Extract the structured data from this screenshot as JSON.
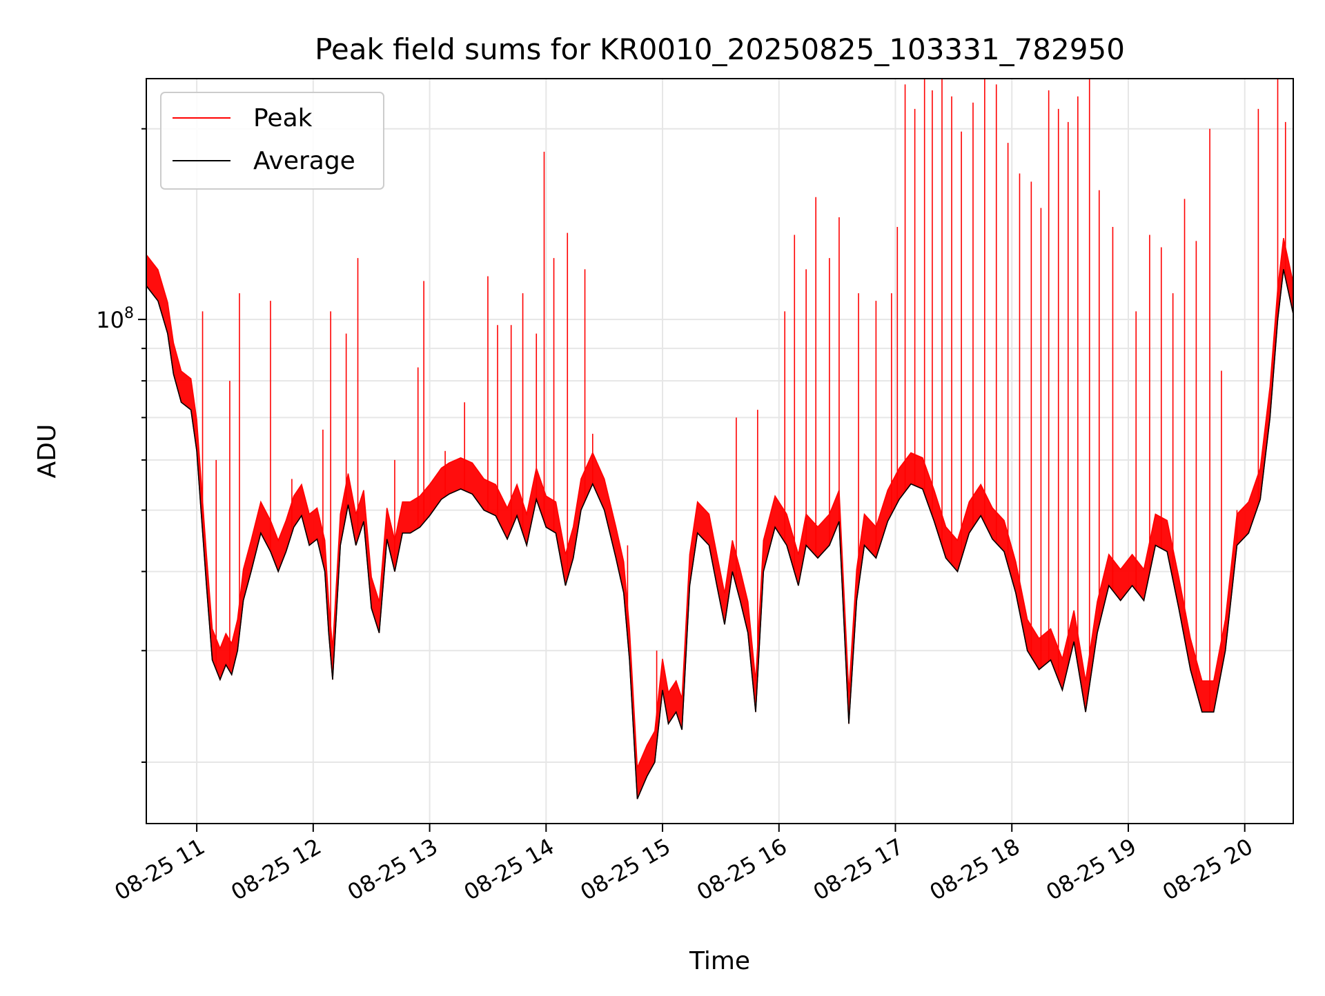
{
  "chart_data": {
    "type": "line",
    "title": "Peak field sums for KR0010_20250825_103331_782950",
    "xlabel": "Time",
    "ylabel": "ADU",
    "y_scale": "log",
    "ylim": [
      16000000,
      240000000
    ],
    "xlim": [
      "2025-08-25 10:34",
      "2025-08-25 20:25"
    ],
    "grid": true,
    "legend_position": "top-left",
    "x_ticks": [
      {
        "t": "2025-08-25 11:00",
        "label": "08-25 11"
      },
      {
        "t": "2025-08-25 12:00",
        "label": "08-25 12"
      },
      {
        "t": "2025-08-25 13:00",
        "label": "08-25 13"
      },
      {
        "t": "2025-08-25 14:00",
        "label": "08-25 14"
      },
      {
        "t": "2025-08-25 15:00",
        "label": "08-25 15"
      },
      {
        "t": "2025-08-25 16:00",
        "label": "08-25 16"
      },
      {
        "t": "2025-08-25 17:00",
        "label": "08-25 17"
      },
      {
        "t": "2025-08-25 18:00",
        "label": "08-25 18"
      },
      {
        "t": "2025-08-25 19:00",
        "label": "08-25 19"
      },
      {
        "t": "2025-08-25 20:00",
        "label": "08-25 20"
      }
    ],
    "y_major_tick": {
      "value": 100000000,
      "label_base": "10",
      "label_exp": "8"
    },
    "series": [
      {
        "name": "Peak",
        "color": "#ff0000",
        "spikes": [
          [
            "2025-08-25 11:03",
            103000000
          ],
          [
            "2025-08-25 11:10",
            60000000
          ],
          [
            "2025-08-25 11:17",
            80000000
          ],
          [
            "2025-08-25 11:22",
            110000000
          ],
          [
            "2025-08-25 11:38",
            107000000
          ],
          [
            "2025-08-25 11:49",
            56000000
          ],
          [
            "2025-08-25 12:05",
            67000000
          ],
          [
            "2025-08-25 12:09",
            103000000
          ],
          [
            "2025-08-25 12:17",
            95000000
          ],
          [
            "2025-08-25 12:23",
            125000000
          ],
          [
            "2025-08-25 12:42",
            60000000
          ],
          [
            "2025-08-25 12:54",
            84000000
          ],
          [
            "2025-08-25 12:57",
            115000000
          ],
          [
            "2025-08-25 13:08",
            62000000
          ],
          [
            "2025-08-25 13:18",
            74000000
          ],
          [
            "2025-08-25 13:30",
            117000000
          ],
          [
            "2025-08-25 13:35",
            98000000
          ],
          [
            "2025-08-25 13:42",
            98000000
          ],
          [
            "2025-08-25 13:48",
            110000000
          ],
          [
            "2025-08-25 13:55",
            95000000
          ],
          [
            "2025-08-25 13:59",
            184000000
          ],
          [
            "2025-08-25 14:04",
            125000000
          ],
          [
            "2025-08-25 14:11",
            137000000
          ],
          [
            "2025-08-25 14:20",
            120000000
          ],
          [
            "2025-08-25 14:24",
            66000000
          ],
          [
            "2025-08-25 14:42",
            44000000
          ],
          [
            "2025-08-25 14:57",
            30000000
          ],
          [
            "2025-08-25 15:25",
            43000000
          ],
          [
            "2025-08-25 15:38",
            70000000
          ],
          [
            "2025-08-25 15:49",
            72000000
          ],
          [
            "2025-08-25 16:03",
            103000000
          ],
          [
            "2025-08-25 16:08",
            136000000
          ],
          [
            "2025-08-25 16:14",
            120000000
          ],
          [
            "2025-08-25 16:19",
            156000000
          ],
          [
            "2025-08-25 16:26",
            125000000
          ],
          [
            "2025-08-25 16:31",
            145000000
          ],
          [
            "2025-08-25 16:41",
            110000000
          ],
          [
            "2025-08-25 16:50",
            107000000
          ],
          [
            "2025-08-25 16:58",
            110000000
          ],
          [
            "2025-08-25 17:01",
            140000000
          ],
          [
            "2025-08-25 17:05",
            235000000
          ],
          [
            "2025-08-25 17:10",
            215000000
          ],
          [
            "2025-08-25 17:15",
            240000000
          ],
          [
            "2025-08-25 17:19",
            230000000
          ],
          [
            "2025-08-25 17:24",
            240000000
          ],
          [
            "2025-08-25 17:29",
            225000000
          ],
          [
            "2025-08-25 17:34",
            198000000
          ],
          [
            "2025-08-25 17:40",
            220000000
          ],
          [
            "2025-08-25 17:46",
            240000000
          ],
          [
            "2025-08-25 17:52",
            235000000
          ],
          [
            "2025-08-25 17:58",
            190000000
          ],
          [
            "2025-08-25 18:04",
            170000000
          ],
          [
            "2025-08-25 18:10",
            165000000
          ],
          [
            "2025-08-25 18:15",
            150000000
          ],
          [
            "2025-08-25 18:19",
            230000000
          ],
          [
            "2025-08-25 18:24",
            215000000
          ],
          [
            "2025-08-25 18:29",
            205000000
          ],
          [
            "2025-08-25 18:34",
            225000000
          ],
          [
            "2025-08-25 18:40",
            240000000
          ],
          [
            "2025-08-25 18:45",
            160000000
          ],
          [
            "2025-08-25 18:52",
            140000000
          ],
          [
            "2025-08-25 19:04",
            103000000
          ],
          [
            "2025-08-25 19:11",
            136000000
          ],
          [
            "2025-08-25 19:17",
            130000000
          ],
          [
            "2025-08-25 19:23",
            110000000
          ],
          [
            "2025-08-25 19:29",
            155000000
          ],
          [
            "2025-08-25 19:35",
            133000000
          ],
          [
            "2025-08-25 19:42",
            200000000
          ],
          [
            "2025-08-25 19:48",
            83000000
          ],
          [
            "2025-08-25 19:56",
            50000000
          ],
          [
            "2025-08-25 20:07",
            215000000
          ],
          [
            "2025-08-25 20:17",
            240000000
          ],
          [
            "2025-08-25 20:21",
            205000000
          ]
        ]
      },
      {
        "name": "Average",
        "color": "#000000",
        "x": [
          "2025-08-25 10:34",
          "2025-08-25 10:40",
          "2025-08-25 10:45",
          "2025-08-25 10:48",
          "2025-08-25 10:52",
          "2025-08-25 10:57",
          "2025-08-25 11:00",
          "2025-08-25 11:02",
          "2025-08-25 11:05",
          "2025-08-25 11:08",
          "2025-08-25 11:12",
          "2025-08-25 11:15",
          "2025-08-25 11:18",
          "2025-08-25 11:21",
          "2025-08-25 11:24",
          "2025-08-25 11:28",
          "2025-08-25 11:33",
          "2025-08-25 11:38",
          "2025-08-25 11:42",
          "2025-08-25 11:46",
          "2025-08-25 11:50",
          "2025-08-25 11:54",
          "2025-08-25 11:58",
          "2025-08-25 12:02",
          "2025-08-25 12:06",
          "2025-08-25 12:08",
          "2025-08-25 12:10",
          "2025-08-25 12:14",
          "2025-08-25 12:18",
          "2025-08-25 12:22",
          "2025-08-25 12:26",
          "2025-08-25 12:30",
          "2025-08-25 12:34",
          "2025-08-25 12:38",
          "2025-08-25 12:42",
          "2025-08-25 12:46",
          "2025-08-25 12:50",
          "2025-08-25 12:55",
          "2025-08-25 13:00",
          "2025-08-25 13:06",
          "2025-08-25 13:10",
          "2025-08-25 13:16",
          "2025-08-25 13:22",
          "2025-08-25 13:28",
          "2025-08-25 13:34",
          "2025-08-25 13:40",
          "2025-08-25 13:45",
          "2025-08-25 13:50",
          "2025-08-25 13:55",
          "2025-08-25 14:00",
          "2025-08-25 14:05",
          "2025-08-25 14:10",
          "2025-08-25 14:14",
          "2025-08-25 14:18",
          "2025-08-25 14:24",
          "2025-08-25 14:30",
          "2025-08-25 14:36",
          "2025-08-25 14:40",
          "2025-08-25 14:43",
          "2025-08-25 14:47",
          "2025-08-25 14:52",
          "2025-08-25 14:56",
          "2025-08-25 15:00",
          "2025-08-25 15:03",
          "2025-08-25 15:07",
          "2025-08-25 15:10",
          "2025-08-25 15:14",
          "2025-08-25 15:18",
          "2025-08-25 15:24",
          "2025-08-25 15:28",
          "2025-08-25 15:32",
          "2025-08-25 15:36",
          "2025-08-25 15:40",
          "2025-08-25 15:44",
          "2025-08-25 15:48",
          "2025-08-25 15:52",
          "2025-08-25 15:58",
          "2025-08-25 16:04",
          "2025-08-25 16:10",
          "2025-08-25 16:14",
          "2025-08-25 16:20",
          "2025-08-25 16:26",
          "2025-08-25 16:31",
          "2025-08-25 16:36",
          "2025-08-25 16:40",
          "2025-08-25 16:44",
          "2025-08-25 16:50",
          "2025-08-25 16:56",
          "2025-08-25 17:02",
          "2025-08-25 17:08",
          "2025-08-25 17:14",
          "2025-08-25 17:20",
          "2025-08-25 17:26",
          "2025-08-25 17:32",
          "2025-08-25 17:38",
          "2025-08-25 17:44",
          "2025-08-25 17:50",
          "2025-08-25 17:56",
          "2025-08-25 18:02",
          "2025-08-25 18:08",
          "2025-08-25 18:14",
          "2025-08-25 18:20",
          "2025-08-25 18:26",
          "2025-08-25 18:32",
          "2025-08-25 18:38",
          "2025-08-25 18:44",
          "2025-08-25 18:50",
          "2025-08-25 18:56",
          "2025-08-25 19:02",
          "2025-08-25 19:08",
          "2025-08-25 19:14",
          "2025-08-25 19:20",
          "2025-08-25 19:26",
          "2025-08-25 19:32",
          "2025-08-25 19:38",
          "2025-08-25 19:44",
          "2025-08-25 19:50",
          "2025-08-25 19:56",
          "2025-08-25 20:02",
          "2025-08-25 20:08",
          "2025-08-25 20:13",
          "2025-08-25 20:17",
          "2025-08-25 20:20",
          "2025-08-25 20:25"
        ],
        "values": [
          113000000,
          107000000,
          95000000,
          82000000,
          74000000,
          72000000,
          62000000,
          51000000,
          38000000,
          29000000,
          27000000,
          28500000,
          27500000,
          30000000,
          36000000,
          40000000,
          46000000,
          43000000,
          40000000,
          43000000,
          47000000,
          49000000,
          44000000,
          45000000,
          40000000,
          32000000,
          27000000,
          44000000,
          51000000,
          44000000,
          48000000,
          35000000,
          32000000,
          45000000,
          40000000,
          46000000,
          46000000,
          47000000,
          49000000,
          52000000,
          53000000,
          54000000,
          53000000,
          50000000,
          49000000,
          45000000,
          49000000,
          44000000,
          52000000,
          47000000,
          46000000,
          38000000,
          42000000,
          50000000,
          55000000,
          50000000,
          42000000,
          37000000,
          29000000,
          17500000,
          19000000,
          20000000,
          26000000,
          23000000,
          24000000,
          22500000,
          38000000,
          46000000,
          44000000,
          38000000,
          33000000,
          40000000,
          36000000,
          32000000,
          24000000,
          40000000,
          47000000,
          44000000,
          38000000,
          44000000,
          42000000,
          44000000,
          48000000,
          23000000,
          36000000,
          44000000,
          42000000,
          48000000,
          52000000,
          55000000,
          54000000,
          48000000,
          42000000,
          40000000,
          46000000,
          49000000,
          45000000,
          43000000,
          37000000,
          30000000,
          28000000,
          29000000,
          26000000,
          31000000,
          24000000,
          32000000,
          38000000,
          36000000,
          38000000,
          36000000,
          44000000,
          43000000,
          35000000,
          28000000,
          24000000,
          24000000,
          30000000,
          44000000,
          46000000,
          52000000,
          70000000,
          100000000,
          120000000,
          102000000
        ]
      }
    ]
  }
}
